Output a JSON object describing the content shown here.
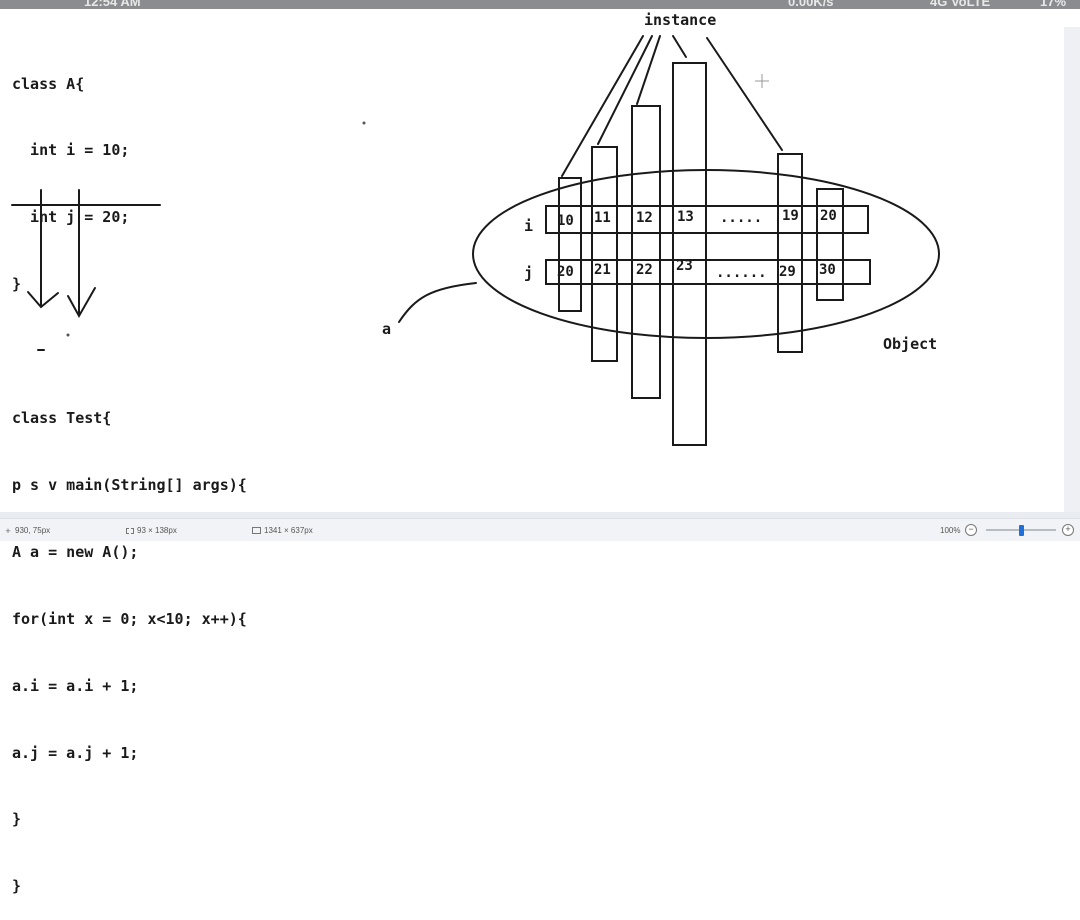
{
  "status_bar_top": {
    "time": "12:54 AM",
    "network_speed": "0.00K/s",
    "signal": "4G VoLTE",
    "battery": "17%"
  },
  "code": {
    "lines": [
      "class A{",
      "  int i = 10;",
      "  int j = 20;",
      "}",
      "",
      "class Test{",
      "p s v main(String[] args){",
      "A a = new A();",
      "for(int x = 0; x<10; x++){",
      "a.i = a.i + 1;",
      "a.j = a.j + 1;",
      "}",
      "}"
    ]
  },
  "diagram": {
    "instance_label": "instance",
    "object_label": "Object",
    "reference_label": "a",
    "row_i_label": "i",
    "row_j_label": "j",
    "i_values": [
      "10",
      "11",
      "12",
      "13",
      ".....",
      "19",
      "20"
    ],
    "j_values": [
      "20",
      "21",
      "22",
      "23",
      "......",
      "29",
      "30"
    ]
  },
  "editor_status": {
    "cursor_position": "930, 75px",
    "selection_size": "93 × 138px",
    "image_size": "1341 × 637px",
    "zoom": "100%",
    "zoom_level_percent": 100
  },
  "colors": {
    "ink": "#1a1a1a",
    "zoom_accent": "#1e6fd9"
  }
}
